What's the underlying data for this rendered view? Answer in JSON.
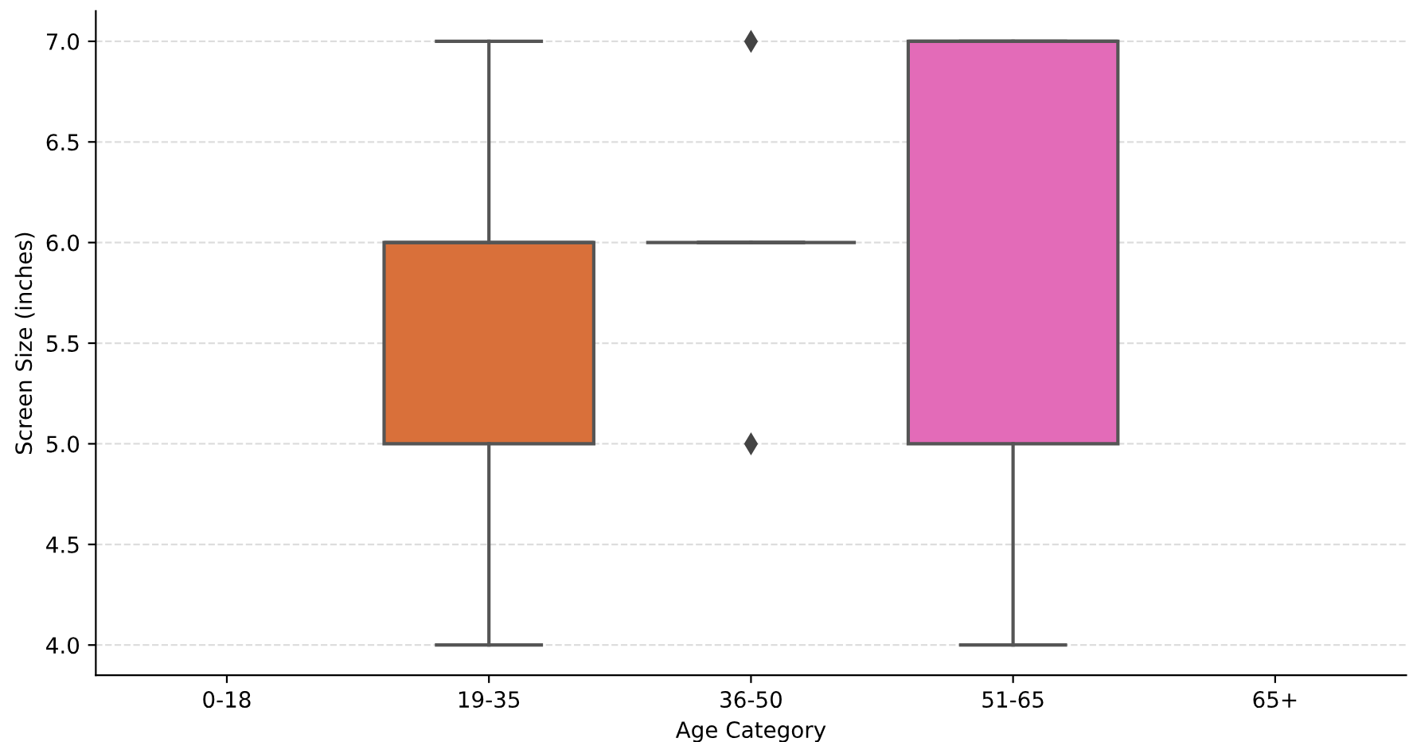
{
  "chart_data": {
    "type": "box",
    "xlabel": "Age Category",
    "ylabel": "Screen Size (inches)",
    "categories": [
      "0-18",
      "19-35",
      "36-50",
      "51-65",
      "65+"
    ],
    "colors": [
      null,
      "#d9703a",
      null,
      "#e36bb8",
      null
    ],
    "boxes": [
      null,
      {
        "low": 4.0,
        "q1": 5.0,
        "median": 6.0,
        "q3": 6.0,
        "high": 7.0
      },
      {
        "low": 6.0,
        "q1": 6.0,
        "median": 6.0,
        "q3": 6.0,
        "high": 6.0,
        "outliers": [
          7.0,
          5.0
        ]
      },
      {
        "low": 4.0,
        "q1": 5.0,
        "median": 7.0,
        "q3": 7.0,
        "high": 7.0
      },
      null
    ],
    "ylim": [
      3.85,
      7.15
    ],
    "yticks": [
      {
        "value": 4,
        "label": "4.0"
      },
      4.5,
      {
        "value": 5,
        "label": "5.0"
      },
      5.5,
      {
        "value": 6,
        "label": "6.0"
      },
      6.5,
      {
        "value": 7,
        "label": "7.0"
      }
    ],
    "grid": "y"
  }
}
